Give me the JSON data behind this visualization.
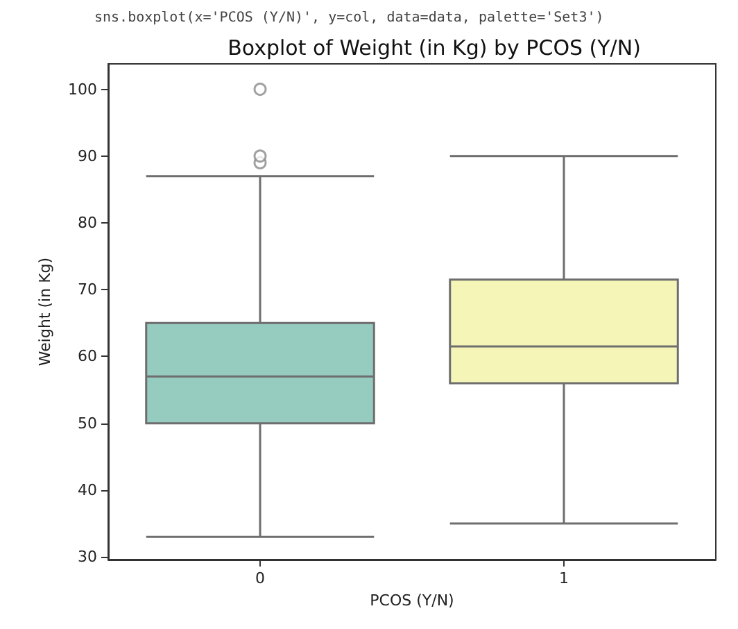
{
  "chart_data": {
    "type": "box",
    "title": "Boxplot of Weight (in Kg) by PCOS (Y/N)",
    "xlabel": "PCOS (Y/N)",
    "ylabel": "Weight (in Kg)",
    "annotations": [
      "sns.boxplot(x='PCOS (Y/N)', y=col, data=data, palette='Set3')"
    ],
    "categories": [
      "0",
      "1"
    ],
    "series": [
      {
        "colors": [
          "#96cbc0",
          "#f5f5b8"
        ],
        "boxes": [
          {
            "low": 33,
            "q1": 50,
            "median": 57,
            "q3": 65,
            "high": 87,
            "outliers": [
              89,
              90,
              100
            ]
          },
          {
            "low": 35,
            "q1": 56,
            "median": 61.5,
            "q3": 71.5,
            "high": 90
          }
        ]
      }
    ],
    "ylim": [
      29.6,
      103.8
    ],
    "yticks": [
      30,
      40,
      50,
      60,
      70,
      80,
      90,
      100
    ],
    "grid": false
  }
}
